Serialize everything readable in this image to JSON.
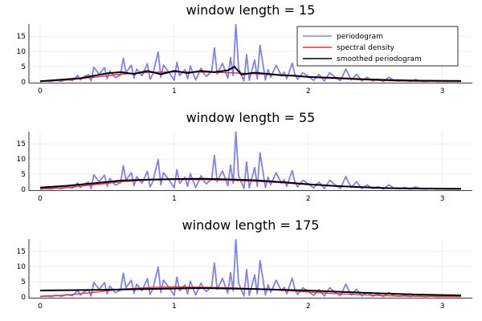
{
  "chart_data": [
    {
      "type": "line",
      "title": "window length = 15",
      "xlim": [
        0,
        3.14
      ],
      "ylim": [
        0,
        19
      ],
      "xticks": [
        0,
        1,
        2,
        3
      ],
      "yticks": [
        0,
        5,
        10,
        15
      ],
      "grid": true,
      "legend": {
        "placement": "top-right",
        "entries": [
          "periodogram",
          "spectral density",
          "smoothed periodogram"
        ]
      },
      "series": [
        {
          "name": "periodogram",
          "color": "#8080f0",
          "ref": "periodogram"
        },
        {
          "name": "spectral density",
          "color": "#e83030",
          "ref": "spectral_density"
        },
        {
          "name": "smoothed periodogram",
          "color": "#000000",
          "x": [
            0,
            0.3,
            0.5,
            0.6,
            0.7,
            0.8,
            0.9,
            1.0,
            1.1,
            1.2,
            1.3,
            1.4,
            1.45,
            1.5,
            1.6,
            1.7,
            1.8,
            1.9,
            2.0,
            2.2,
            2.4,
            2.6,
            2.8,
            3.14
          ],
          "y": [
            0.2,
            1.2,
            2.8,
            3.2,
            2.6,
            3.6,
            2.5,
            3.6,
            2.9,
            3.6,
            3.2,
            3.8,
            5.0,
            2.4,
            3.0,
            2.6,
            2.2,
            2.0,
            1.6,
            1.3,
            0.9,
            0.6,
            0.4,
            0.3
          ]
        }
      ]
    },
    {
      "type": "line",
      "title": "window length = 55",
      "xlim": [
        0,
        3.14
      ],
      "ylim": [
        0,
        19
      ],
      "xticks": [
        0,
        1,
        2,
        3
      ],
      "yticks": [
        0,
        5,
        10,
        15
      ],
      "grid": true,
      "series": [
        {
          "name": "periodogram",
          "color": "#8080f0",
          "ref": "periodogram"
        },
        {
          "name": "spectral density",
          "color": "#e83030",
          "ref": "spectral_density"
        },
        {
          "name": "smoothed periodogram",
          "color": "#000000",
          "x": [
            0,
            0.2,
            0.4,
            0.6,
            0.8,
            1.0,
            1.2,
            1.4,
            1.6,
            1.8,
            2.0,
            2.2,
            2.4,
            2.6,
            2.8,
            3.14
          ],
          "y": [
            0.6,
            1.2,
            2.0,
            2.9,
            3.2,
            3.4,
            3.5,
            3.3,
            3.0,
            2.4,
            1.7,
            1.1,
            0.7,
            0.4,
            0.3,
            0.2
          ]
        }
      ]
    },
    {
      "type": "line",
      "title": "window length = 175",
      "xlim": [
        0,
        3.14
      ],
      "ylim": [
        0,
        19
      ],
      "xticks": [
        0,
        1,
        2,
        3
      ],
      "yticks": [
        0,
        5,
        10,
        15
      ],
      "grid": true,
      "series": [
        {
          "name": "periodogram",
          "color": "#8080f0",
          "ref": "periodogram"
        },
        {
          "name": "spectral density",
          "color": "#e83030",
          "ref": "spectral_density"
        },
        {
          "name": "smoothed periodogram",
          "color": "#000000",
          "x": [
            0,
            0.4,
            0.8,
            1.2,
            1.6,
            2.0,
            2.4,
            2.8,
            3.14
          ],
          "y": [
            2.1,
            2.3,
            2.6,
            2.9,
            2.6,
            2.1,
            1.4,
            0.8,
            0.5
          ]
        }
      ]
    }
  ],
  "shared_series": {
    "periodogram": {
      "x": [
        0,
        0.04,
        0.08,
        0.12,
        0.16,
        0.2,
        0.24,
        0.28,
        0.3,
        0.32,
        0.36,
        0.38,
        0.4,
        0.44,
        0.48,
        0.5,
        0.52,
        0.56,
        0.6,
        0.62,
        0.64,
        0.68,
        0.7,
        0.72,
        0.76,
        0.8,
        0.82,
        0.84,
        0.88,
        0.9,
        0.92,
        0.96,
        1.0,
        1.02,
        1.04,
        1.08,
        1.1,
        1.12,
        1.16,
        1.2,
        1.22,
        1.24,
        1.28,
        1.3,
        1.32,
        1.36,
        1.4,
        1.42,
        1.44,
        1.46,
        1.48,
        1.52,
        1.54,
        1.56,
        1.6,
        1.62,
        1.64,
        1.68,
        1.7,
        1.72,
        1.76,
        1.8,
        1.82,
        1.84,
        1.88,
        1.9,
        1.92,
        1.96,
        2.0,
        2.04,
        2.08,
        2.12,
        2.16,
        2.2,
        2.24,
        2.28,
        2.32,
        2.36,
        2.4,
        2.44,
        2.48,
        2.52,
        2.56,
        2.6,
        2.64,
        2.68,
        2.72,
        2.76,
        2.8,
        2.84,
        2.88,
        2.92,
        2.96,
        3.0,
        3.04,
        3.08,
        3.12
      ],
      "y": [
        0.1,
        0.3,
        0.1,
        0.5,
        0.2,
        0.8,
        0.4,
        2.1,
        0.6,
        1.5,
        2.4,
        0.3,
        4.8,
        2.5,
        4.7,
        1.0,
        3.6,
        1.4,
        2.2,
        7.8,
        3.0,
        5.5,
        1.2,
        4.2,
        2.0,
        6.0,
        0.8,
        2.5,
        9.8,
        1.5,
        5.5,
        3.2,
        0.5,
        6.5,
        2.0,
        4.0,
        1.0,
        5.2,
        0.6,
        4.5,
        2.8,
        1.8,
        3.5,
        11.2,
        2.5,
        6.1,
        1.2,
        8.0,
        2.0,
        19.0,
        4.5,
        0.3,
        9.0,
        0.5,
        7.2,
        1.0,
        12.0,
        0.6,
        4.0,
        1.5,
        5.5,
        2.0,
        3.2,
        1.0,
        6.2,
        2.5,
        0.8,
        3.0,
        1.8,
        0.5,
        2.4,
        0.3,
        3.0,
        1.5,
        0.4,
        4.2,
        0.6,
        2.5,
        0.3,
        1.5,
        0.2,
        0.9,
        0.1,
        1.5,
        0.4,
        0.2,
        0.6,
        0.1,
        0.8,
        0.2,
        0.1,
        0.4,
        0.1,
        0.2,
        0.1,
        0.2,
        0.1
      ]
    },
    "spectral_density": {
      "x": [
        0,
        0.2,
        0.4,
        0.6,
        0.8,
        1.0,
        1.2,
        1.4,
        1.6,
        1.8,
        2.0,
        2.2,
        2.4,
        2.6,
        2.8,
        3.14
      ],
      "y": [
        0.2,
        0.6,
        1.5,
        2.5,
        3.1,
        3.3,
        3.2,
        3.0,
        2.7,
        2.2,
        1.6,
        1.1,
        0.7,
        0.4,
        0.2,
        0.1
      ]
    }
  }
}
